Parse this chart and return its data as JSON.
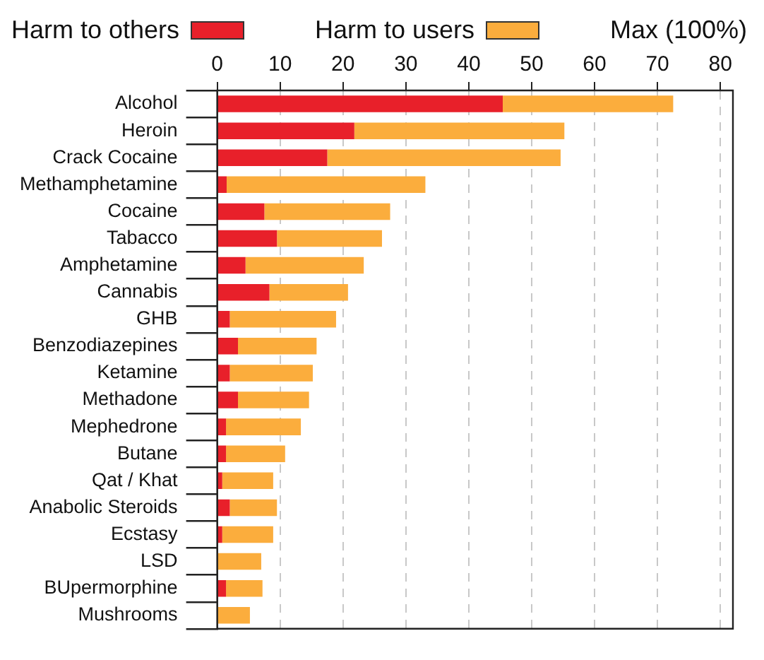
{
  "chart_data": {
    "type": "bar",
    "orientation": "horizontal",
    "stacked": true,
    "xlabel": "Max (100%)",
    "categories": [
      "Alcohol",
      "Heroin",
      "Crack Cocaine",
      "Methamphetamine",
      "Cocaine",
      "Tabacco",
      "Amphetamine",
      "Cannabis",
      "GHB",
      "Benzodiazepines",
      "Ketamine",
      "Methadone",
      "Mephedrone",
      "Butane",
      "Qat / Khat",
      "Anabolic Steroids",
      "Ecstasy",
      "LSD",
      "BUpermorphine",
      "Mushrooms"
    ],
    "series": [
      {
        "name": "Harm to others",
        "color": "#e8202a",
        "values": [
          45.4,
          21.8,
          17.5,
          1.5,
          7.5,
          9.5,
          4.5,
          8.3,
          2.0,
          3.3,
          2.0,
          3.3,
          1.4,
          1.4,
          0.8,
          2.0,
          0.8,
          0,
          1.4,
          0
        ]
      },
      {
        "name": "Harm to users",
        "color": "#fbad3d",
        "values": [
          27.1,
          33.4,
          37.1,
          31.6,
          20.0,
          16.7,
          18.8,
          12.5,
          16.9,
          12.5,
          13.2,
          11.3,
          11.9,
          9.4,
          8.1,
          7.5,
          8.1,
          7.0,
          5.8,
          5.2
        ]
      }
    ],
    "xlim": [
      0,
      82
    ],
    "xticks": [
      0,
      10,
      20,
      30,
      40,
      50,
      60,
      70,
      80
    ],
    "grid": "x",
    "legend": "top"
  }
}
